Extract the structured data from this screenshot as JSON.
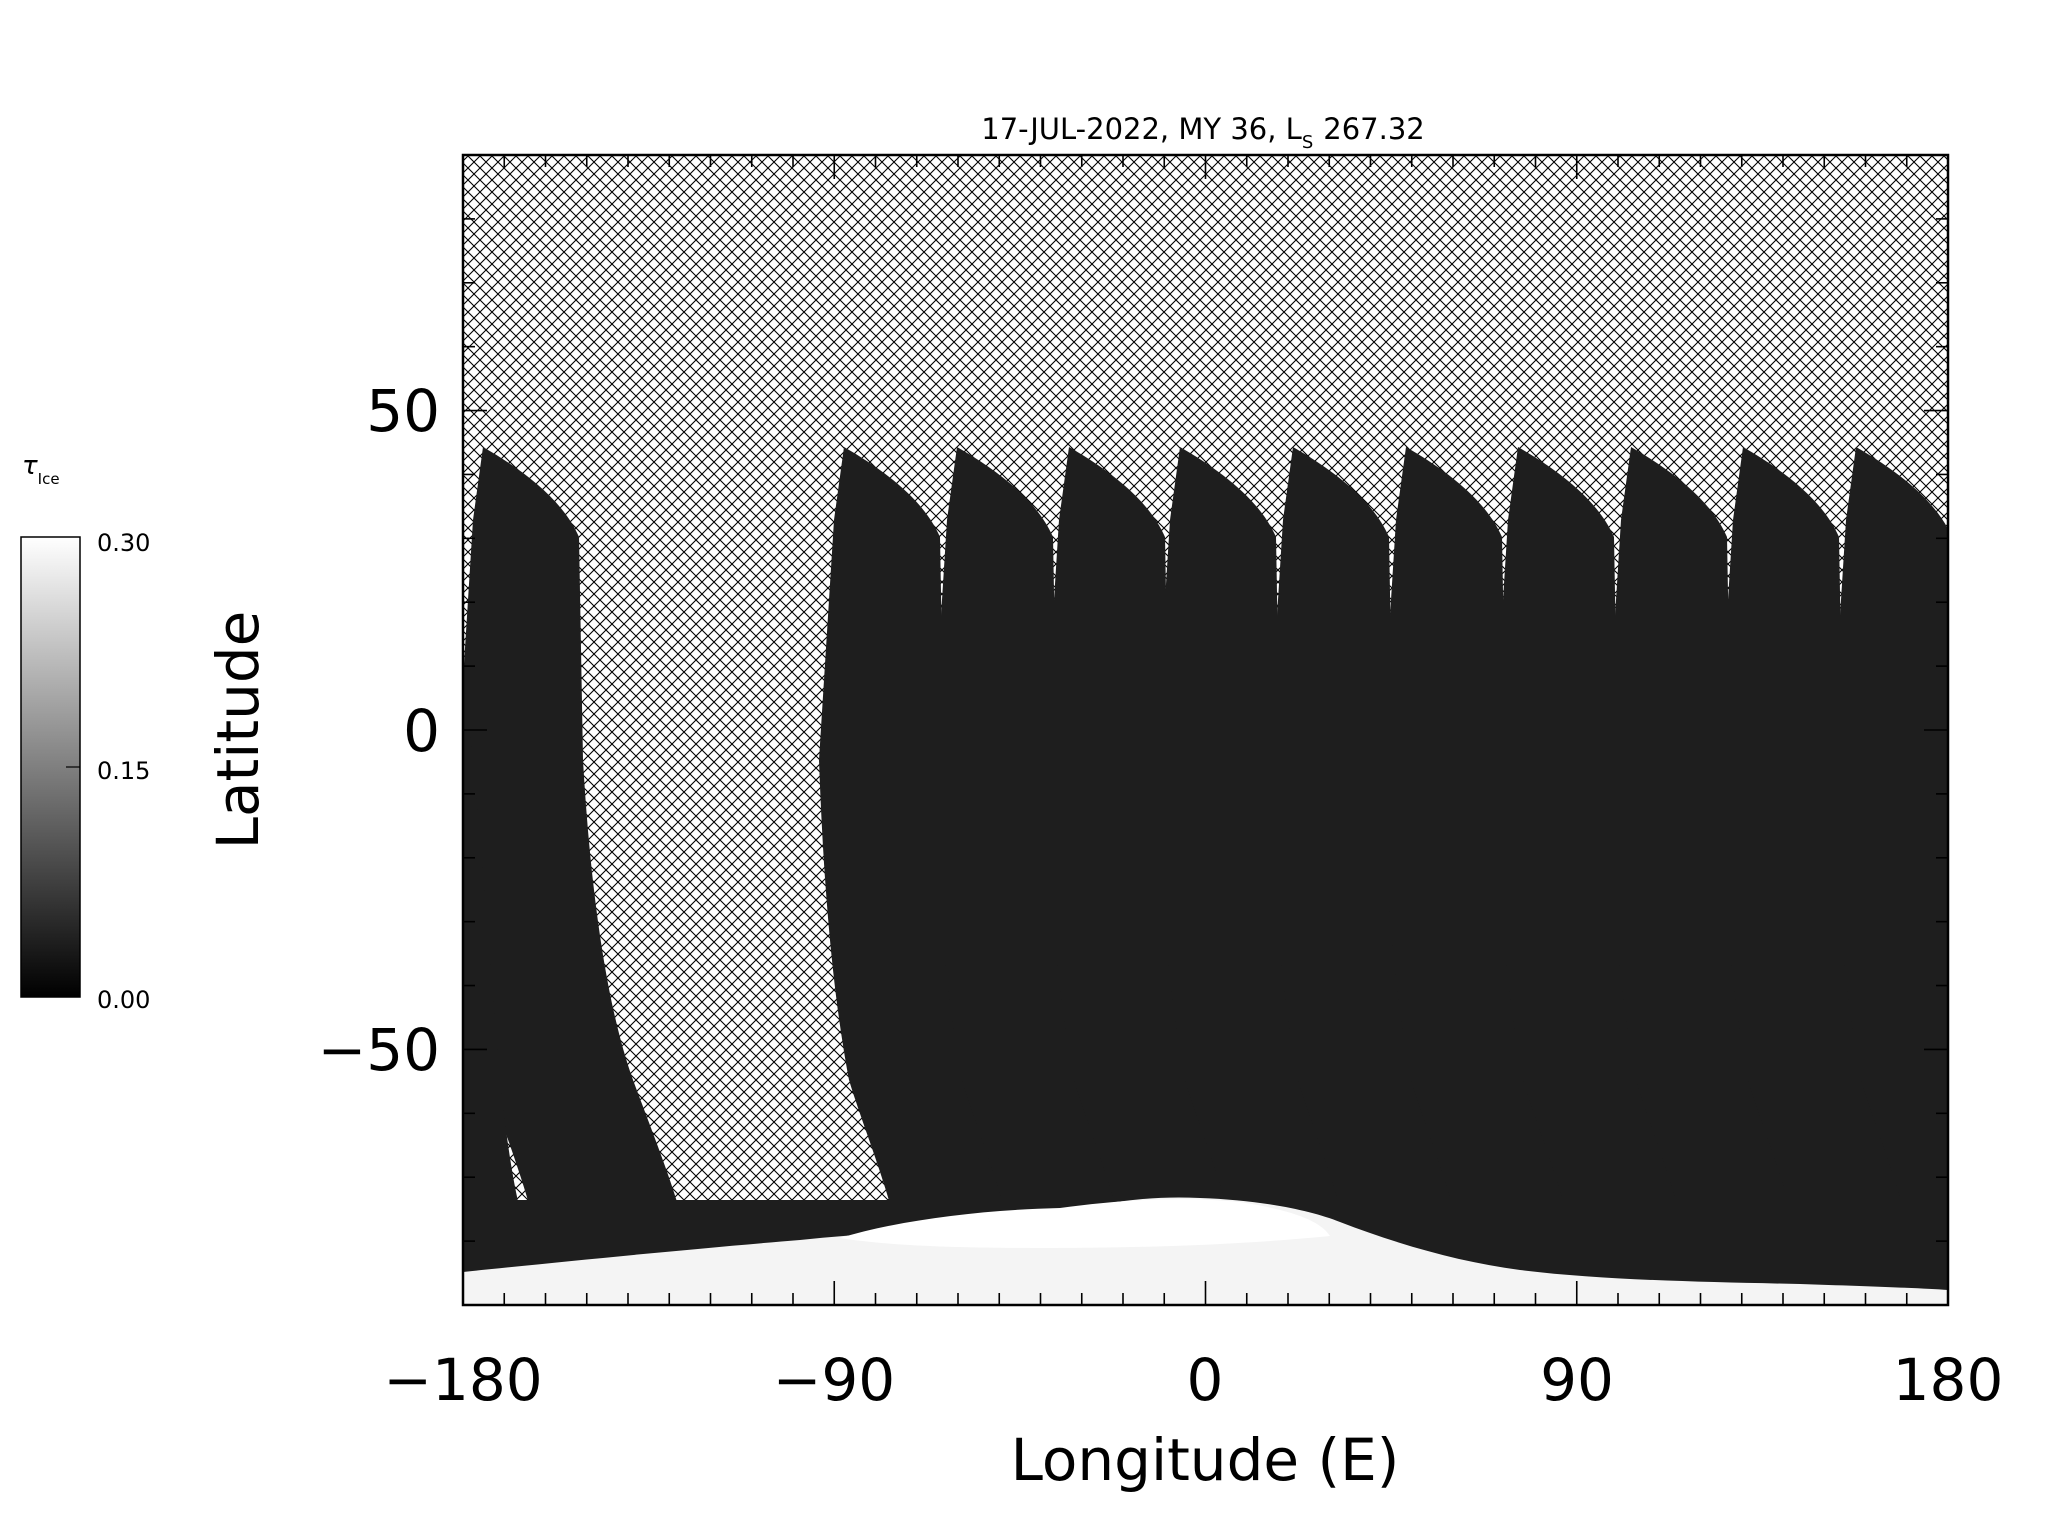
{
  "figure": {
    "title_prefix": "17-JUL-2022, MY 36,  L",
    "title_sub": "S",
    "title_value": "267.32"
  },
  "colorbar": {
    "label_symbol": "τ",
    "label_sub": "Ice",
    "tick_labels": [
      "0.30",
      "0.15",
      "0.00"
    ],
    "range": [
      0.0,
      0.3
    ],
    "colormap": "grayscale",
    "low_color": "#000000",
    "high_color": "#ffffff"
  },
  "axes": {
    "xlabel": "Longitude (E)",
    "ylabel": "Latitude",
    "xlim": [
      -180,
      180
    ],
    "ylim": [
      -90,
      90
    ],
    "xticks": [
      -180,
      -90,
      0,
      90,
      180
    ],
    "xtick_labels": [
      "−180",
      "−90",
      "0",
      "90",
      "180"
    ],
    "yticks": [
      -50,
      0,
      50
    ],
    "ytick_labels": [
      "−50",
      "0",
      "50"
    ],
    "x_minor_step": 10,
    "y_minor_step": 10
  },
  "map": {
    "no_data_fill": "cross-hatch",
    "swath_fill": "#1e1e1e",
    "polar_cap_fill": "#f4f4f4"
  }
}
